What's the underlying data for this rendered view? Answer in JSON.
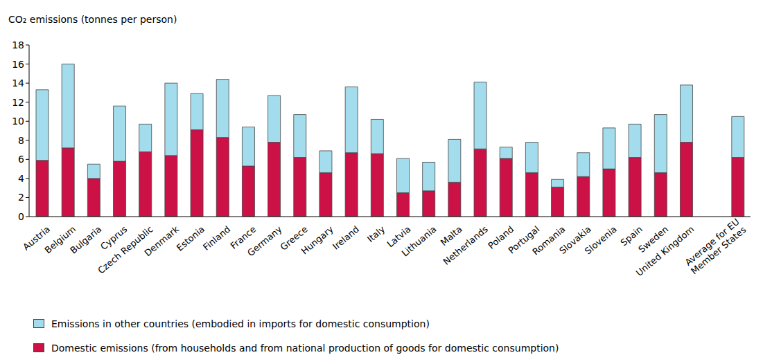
{
  "chart_data": {
    "type": "bar",
    "stacked": true,
    "y_label": "CO₂ emissions (tonnes per person)",
    "categories": [
      "Austria",
      "Belgium",
      "Bulgaria",
      "Cyprus",
      "Czech Republic",
      "Denmark",
      "Estonia",
      "Finland",
      "France",
      "Germany",
      "Greece",
      "Hungary",
      "Ireland",
      "Italy",
      "Latvia",
      "Lithuania",
      "Malta",
      "Netherlands",
      "Poland",
      "Portugal",
      "Romania",
      "Slovakia",
      "Slovenia",
      "Spain",
      "Sweden",
      "United Kingdom",
      null,
      "Average for EU Member States"
    ],
    "series": [
      {
        "name": "Domestic emissions (from households and from national production of goods for domestic consumption)",
        "color": "#cc1146",
        "values": [
          5.9,
          7.2,
          4.0,
          5.8,
          6.8,
          6.4,
          9.1,
          8.3,
          5.3,
          7.8,
          6.2,
          4.6,
          6.7,
          6.6,
          2.5,
          2.7,
          3.6,
          7.1,
          6.1,
          4.6,
          3.1,
          4.2,
          5.0,
          6.2,
          4.6,
          7.8,
          null,
          6.2
        ]
      },
      {
        "name": "Emissions in other countries (embodied in imports for domestic consumption)",
        "color": "#a3dcec",
        "values": [
          7.4,
          8.8,
          1.5,
          5.8,
          2.9,
          7.6,
          3.8,
          6.1,
          4.1,
          4.9,
          4.5,
          2.3,
          6.9,
          3.6,
          3.6,
          3.0,
          4.5,
          7.0,
          1.2,
          3.2,
          0.8,
          2.5,
          4.3,
          3.5,
          6.1,
          6.0,
          null,
          4.3
        ]
      }
    ],
    "ylim": [
      0,
      18
    ],
    "yticks": [
      0,
      2,
      4,
      6,
      8,
      10,
      12,
      14,
      16,
      18
    ],
    "grid": false,
    "legend": "bottom"
  }
}
